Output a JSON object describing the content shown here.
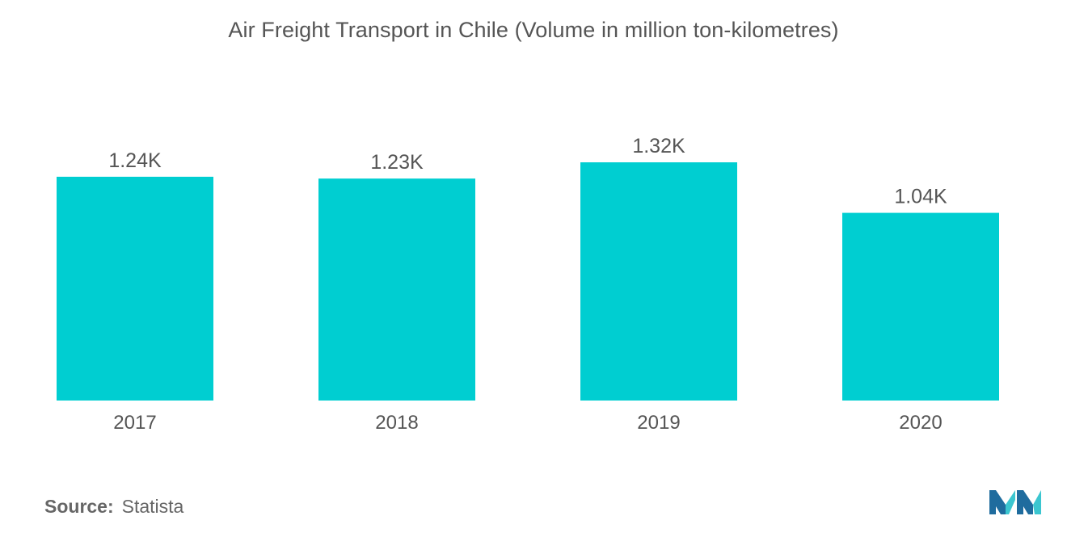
{
  "chart_data": {
    "type": "bar",
    "title": "Air Freight Transport in Chile (Volume in million ton-kilometres)",
    "categories": [
      "2017",
      "2018",
      "2019",
      "2020"
    ],
    "values": [
      1240,
      1230,
      1320,
      1040
    ],
    "value_labels": [
      "1.24K",
      "1.23K",
      "1.32K",
      "1.04K"
    ],
    "xlabel": "",
    "ylabel": "",
    "ylim": [
      0,
      1320
    ],
    "grid": false,
    "legend": "none"
  },
  "colors": {
    "bar": "#00CED1",
    "text": "#555555",
    "logo_dark": "#1F6C9E",
    "logo_light": "#3BC6D0"
  },
  "source": {
    "label": "Source:",
    "value": "Statista"
  },
  "logo_icon": "mordor-intelligence-logo"
}
